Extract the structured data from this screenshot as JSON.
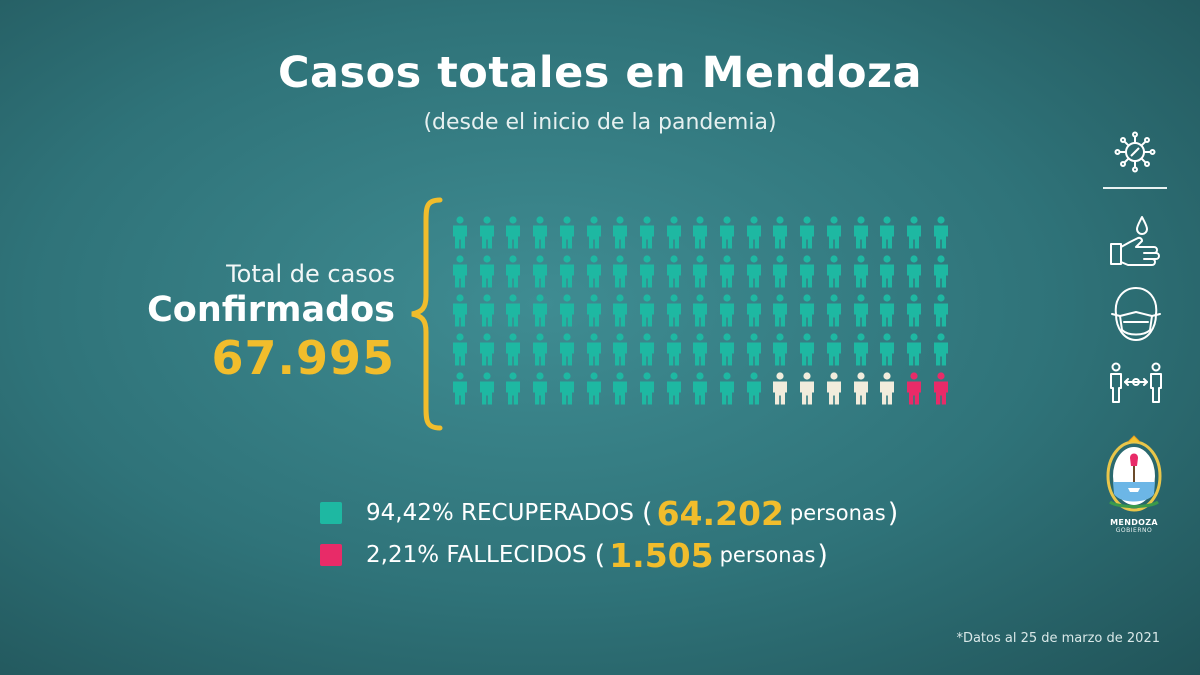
{
  "header": {
    "title": "Casos totales en Mendoza",
    "subtitle": "(desde el inicio de la pandemia)"
  },
  "totals": {
    "label": "Total de casos",
    "label_strong": "Confirmados",
    "count": "67.995"
  },
  "pictogram": {
    "rows": 5,
    "columns": 19,
    "total_icons": 95,
    "recovered_icons": 88,
    "active_icons": 5,
    "deceased_icons": 2,
    "colors": {
      "recovered": "#1eb8a2",
      "active": "#f1ecdc",
      "deceased": "#e82b68"
    }
  },
  "legend": {
    "recovered": {
      "percent_label": "94,42% RECUPERADOS",
      "open": "(",
      "count": "64.202",
      "unit": "personas",
      "close": ")",
      "color": "#1eb8a2"
    },
    "deceased": {
      "percent_label": "2,21% FALLECIDOS",
      "open": "(",
      "count": "1.505",
      "unit": "personas",
      "close": ")",
      "color": "#e82b68"
    }
  },
  "sidebar_icons": [
    "virus-icon",
    "handwash-icon",
    "face-mask-icon",
    "social-distance-icon"
  ],
  "logo": {
    "name": "MENDOZA",
    "sub": "GOBIERNO"
  },
  "footnote": "*Datos al 25 de marzo de 2021",
  "accent_color": "#f1bd2c"
}
